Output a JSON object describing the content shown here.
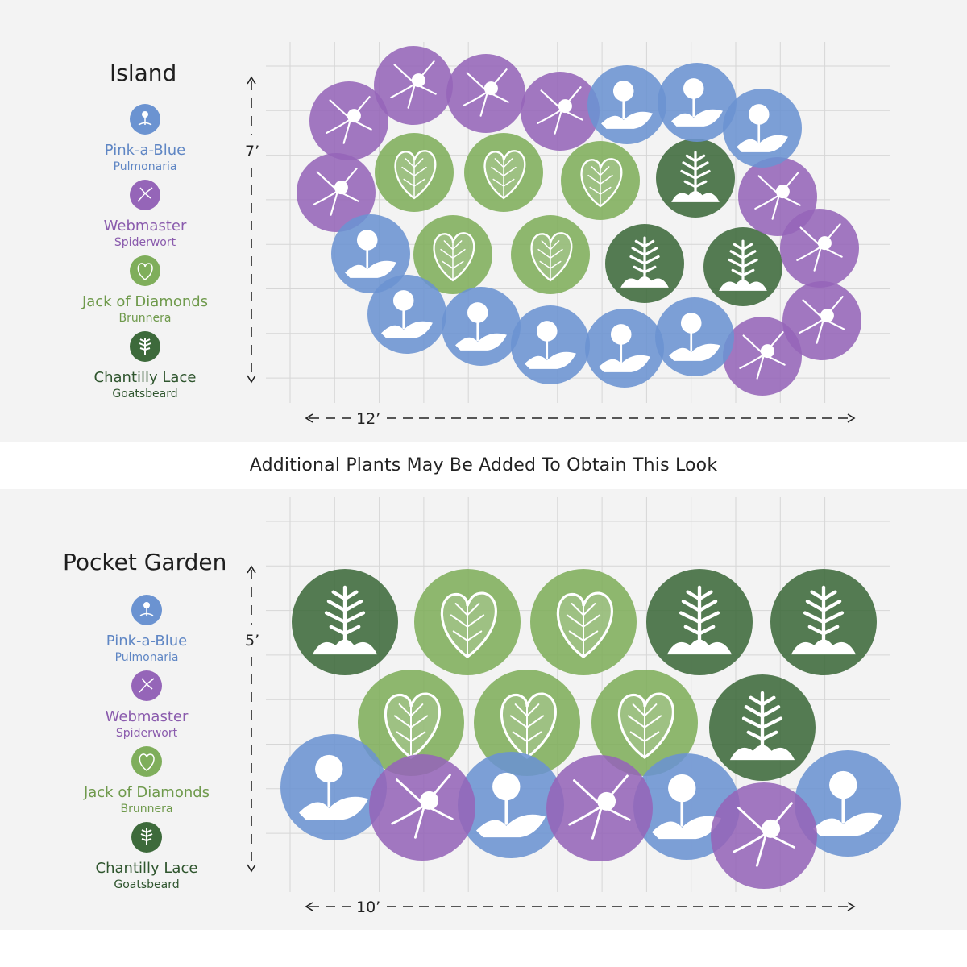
{
  "colors": {
    "pink_a_blue": "#6b93d1",
    "webmaster": "#9565b8",
    "jack_of_diamonds": "#7fae5b",
    "chantilly_lace": "#3d6a3b",
    "panel_bg": "#f3f3f3",
    "grid": "#d6d6d6"
  },
  "plants": {
    "pink_a_blue": {
      "name": "Pink-a-Blue",
      "type": "Pulmonaria",
      "icon": "pulmonaria-icon"
    },
    "webmaster": {
      "name": "Webmaster",
      "type": "Spiderwort",
      "icon": "spiderwort-icon"
    },
    "jack_of_diamonds": {
      "name": "Jack of Diamonds",
      "type": "Brunnera",
      "icon": "brunnera-leaf-icon"
    },
    "chantilly_lace": {
      "name": "Chantilly Lace",
      "type": "Goatsbeard",
      "icon": "goatsbeard-icon"
    }
  },
  "island": {
    "title": "Island",
    "height_label": "7’",
    "width_label": "12’"
  },
  "pocket": {
    "title": "Pocket Garden",
    "height_label": "5’",
    "width_label": "10’"
  },
  "banner": "Additional Plants May Be Added To Obtain This Look"
}
